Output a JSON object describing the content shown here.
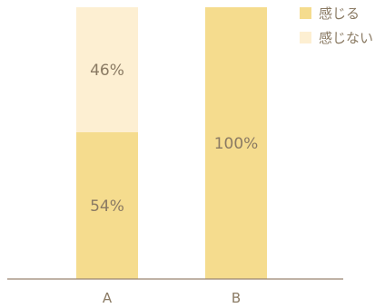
{
  "chart_data": {
    "type": "bar",
    "stacked": true,
    "categories": [
      "A",
      "B"
    ],
    "series": [
      {
        "name": "感じる",
        "values": [
          54,
          100
        ],
        "labels": [
          "54%",
          "100%"
        ],
        "color": "#f5dc8e"
      },
      {
        "name": "感じない",
        "values": [
          46,
          0
        ],
        "labels": [
          "46%",
          ""
        ],
        "color": "#fdefd2"
      }
    ],
    "ylim": [
      0,
      100
    ],
    "grid": false,
    "legend_position": "top-right",
    "axis_color": "#9a8570",
    "text_color": "#8a7a63"
  }
}
